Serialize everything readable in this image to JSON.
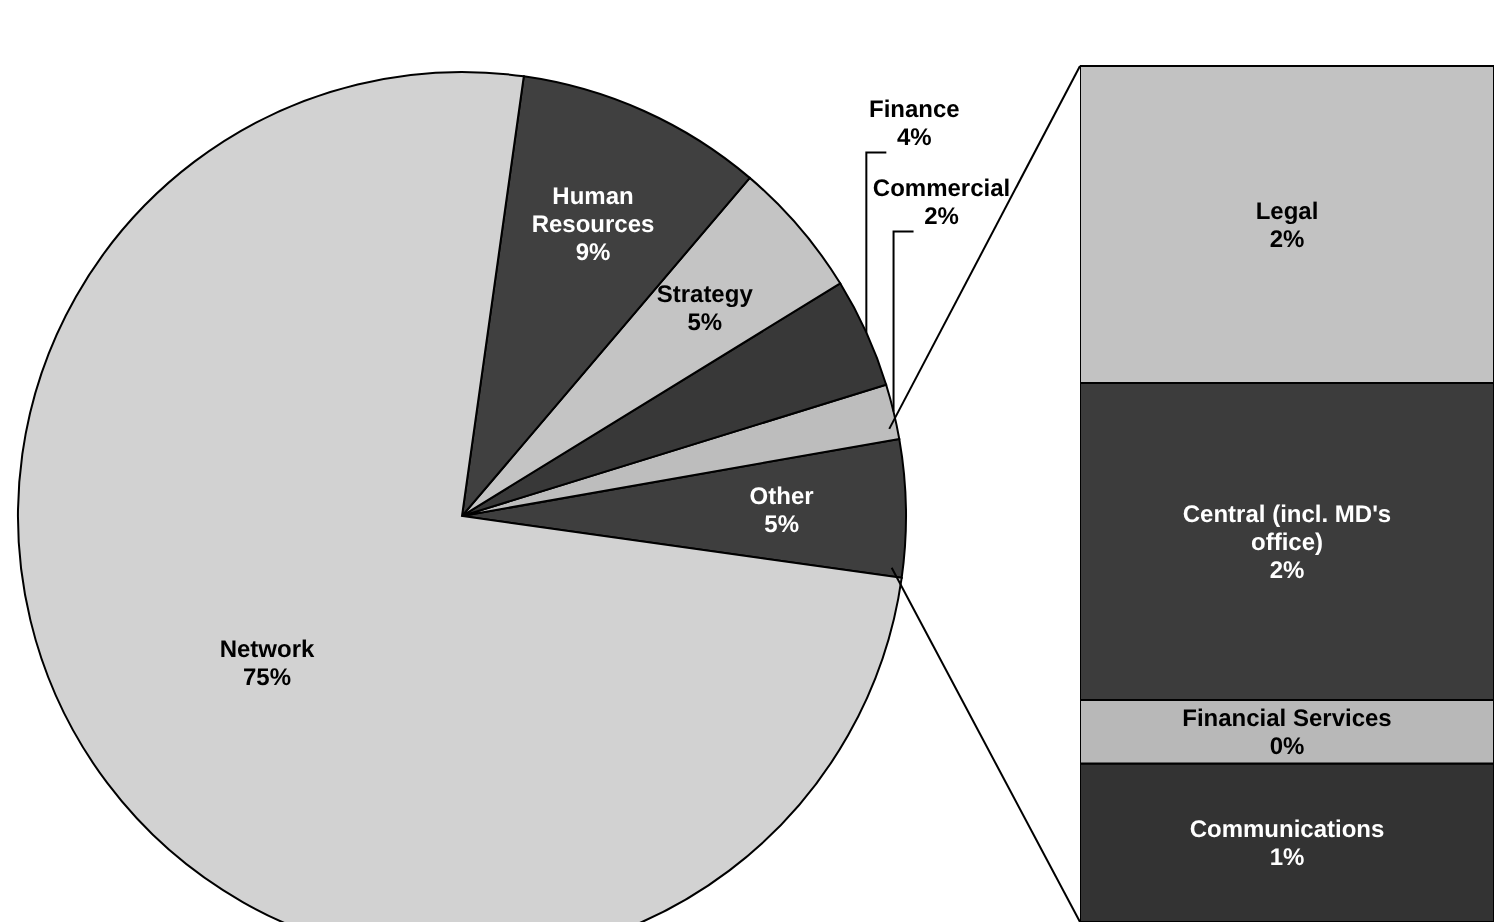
{
  "chart_data": [
    {
      "type": "pie",
      "categories": [
        "Other",
        "Commercial",
        "Finance",
        "Strategy",
        "Human Resources",
        "Network"
      ],
      "values": [
        5,
        2,
        4,
        5,
        9,
        75
      ],
      "value_labels": [
        "5%",
        "2%",
        "4%",
        "5%",
        "9%",
        "75%"
      ],
      "colors": [
        "#3e3e3e",
        "#bdbdbd",
        "#383838",
        "#c4c4c4",
        "#404040",
        "#d2d2d2"
      ],
      "legend": false
    },
    {
      "type": "bar",
      "stacked": true,
      "categories": [
        null
      ],
      "legend": false,
      "series": [
        {
          "name": "Communications",
          "color": "#333333",
          "values": [
            1
          ],
          "value_labels": [
            "1%"
          ]
        },
        {
          "name": "Financial Services",
          "color": "#b8b8b8",
          "values": [
            0.4
          ],
          "value_labels": [
            "0%"
          ]
        },
        {
          "name": "Central (incl. MD's office)",
          "color": "#3c3c3c",
          "values": [
            2
          ],
          "value_labels": [
            "2%"
          ]
        },
        {
          "name": "Legal",
          "color": "#c2c2c2",
          "values": [
            2
          ],
          "value_labels": [
            "2%"
          ]
        }
      ]
    }
  ]
}
